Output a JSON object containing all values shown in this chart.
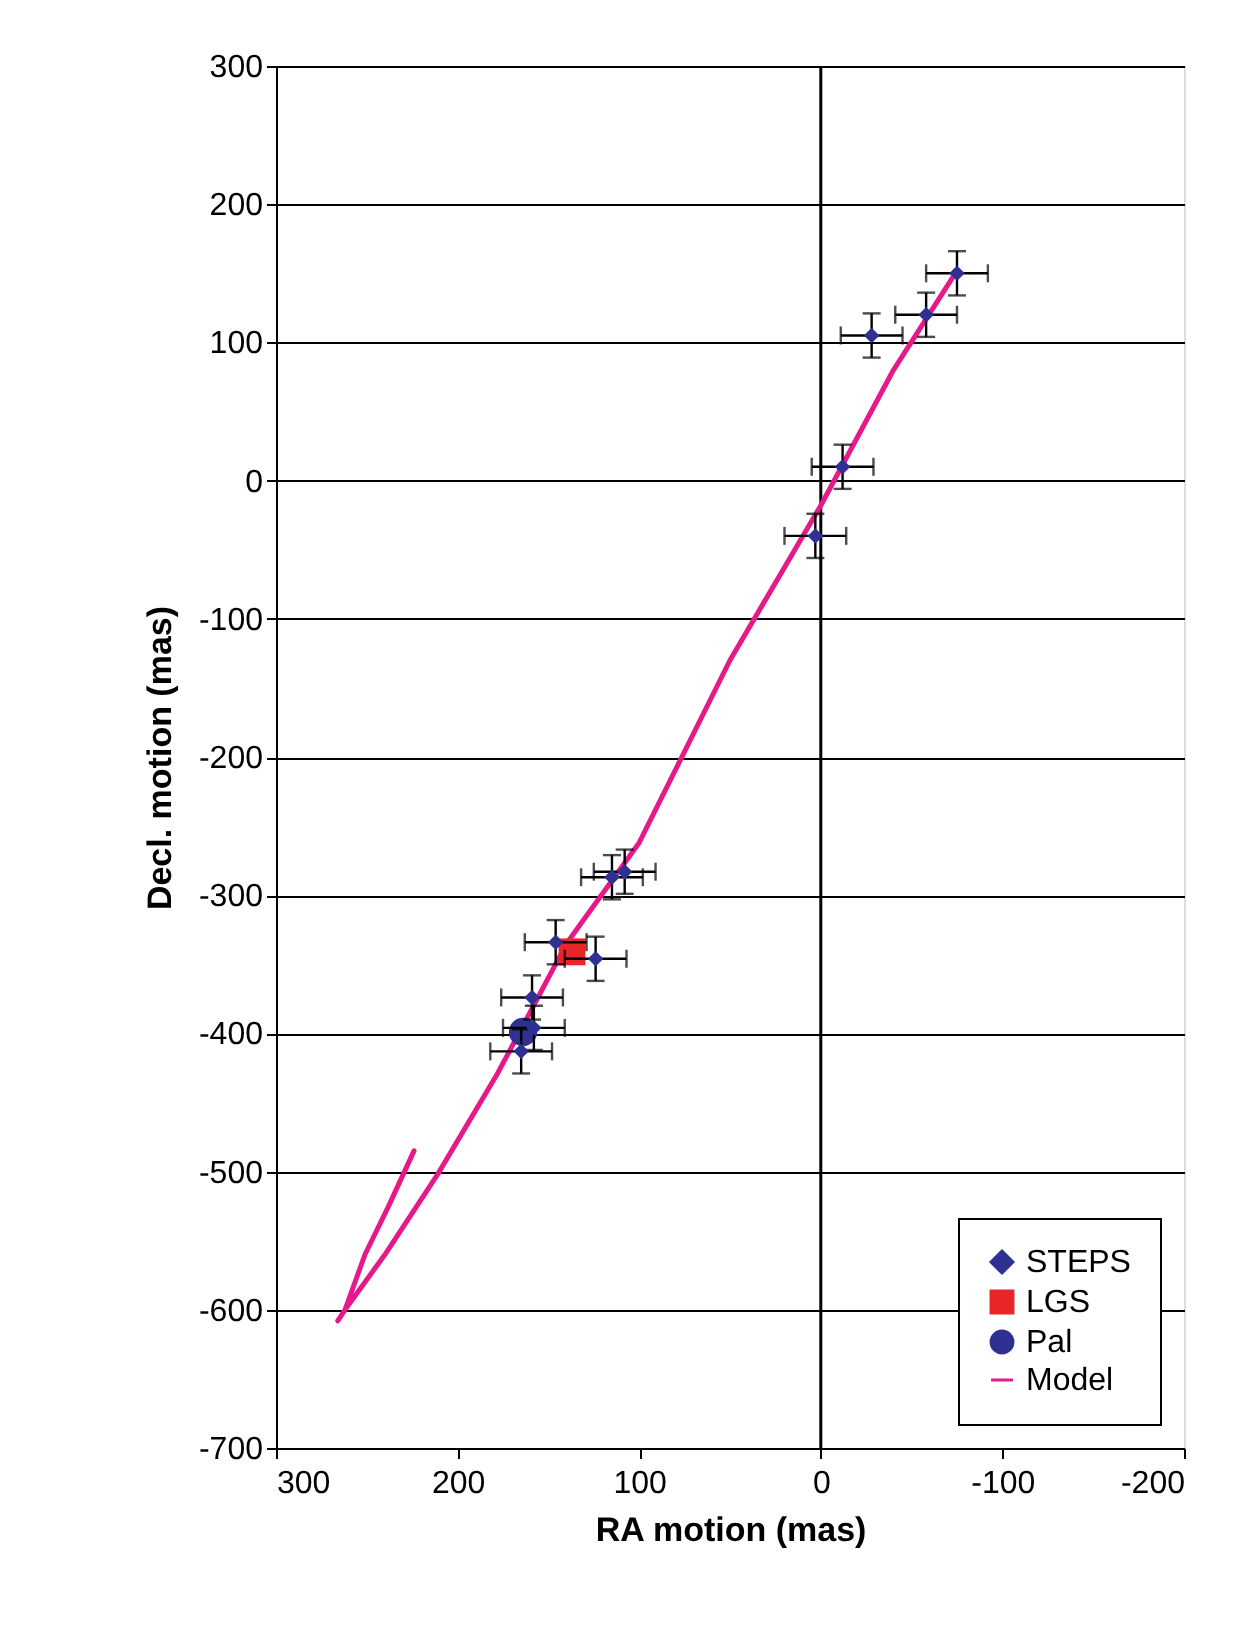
{
  "chart_data": {
    "type": "scatter",
    "xlabel": "RA motion (mas)",
    "ylabel": "Decl. motion (mas)",
    "xlim": [
      300,
      -200
    ],
    "xticks": [
      300,
      200,
      100,
      0,
      -100,
      -200
    ],
    "ylim": [
      -700,
      300
    ],
    "yticks": [
      -700,
      -600,
      -500,
      -400,
      -300,
      -200,
      -100,
      0,
      100,
      200,
      300
    ],
    "grid": "y",
    "legend": "bottom right",
    "ref_lines": [
      {
        "axis": "x",
        "value": 0,
        "color": "#000000"
      }
    ],
    "series": [
      {
        "name": "STEPS",
        "marker": "diamond",
        "color": "#2e3192",
        "x": [
          -75,
          -58,
          -28,
          -12,
          3,
          108,
          115,
          146,
          124,
          159,
          158,
          165
        ],
        "values": [
          150,
          120,
          105,
          10,
          -40,
          -283,
          -287,
          -334,
          -346,
          -374,
          -396,
          -413
        ],
        "errors": [
          16,
          16,
          16,
          16,
          16,
          16,
          16,
          16,
          16,
          16,
          16,
          16
        ],
        "xerrors": [
          17,
          17,
          17,
          17,
          17,
          17,
          17,
          17,
          17,
          17,
          17,
          17
        ]
      },
      {
        "name": "LGS",
        "marker": "square",
        "color": "#e8262a",
        "x": [
          137
        ],
        "values": [
          -341
        ]
      },
      {
        "name": "Pal",
        "marker": "circle",
        "color": "#2e3192",
        "x": [
          164
        ],
        "values": [
          -399
        ]
      },
      {
        "name": "Model",
        "type": "line",
        "line_style": "solid",
        "color": "#e5198a",
        "x": [
          -75,
          -40,
          0,
          50,
          100,
          140,
          178,
          211,
          240,
          262,
          266,
          262,
          251,
          238,
          224
        ],
        "values": [
          152,
          80,
          -18,
          -130,
          -262,
          -335,
          -429,
          -502,
          -560,
          -600,
          -608,
          -600,
          -560,
          -525,
          -485
        ]
      }
    ]
  }
}
